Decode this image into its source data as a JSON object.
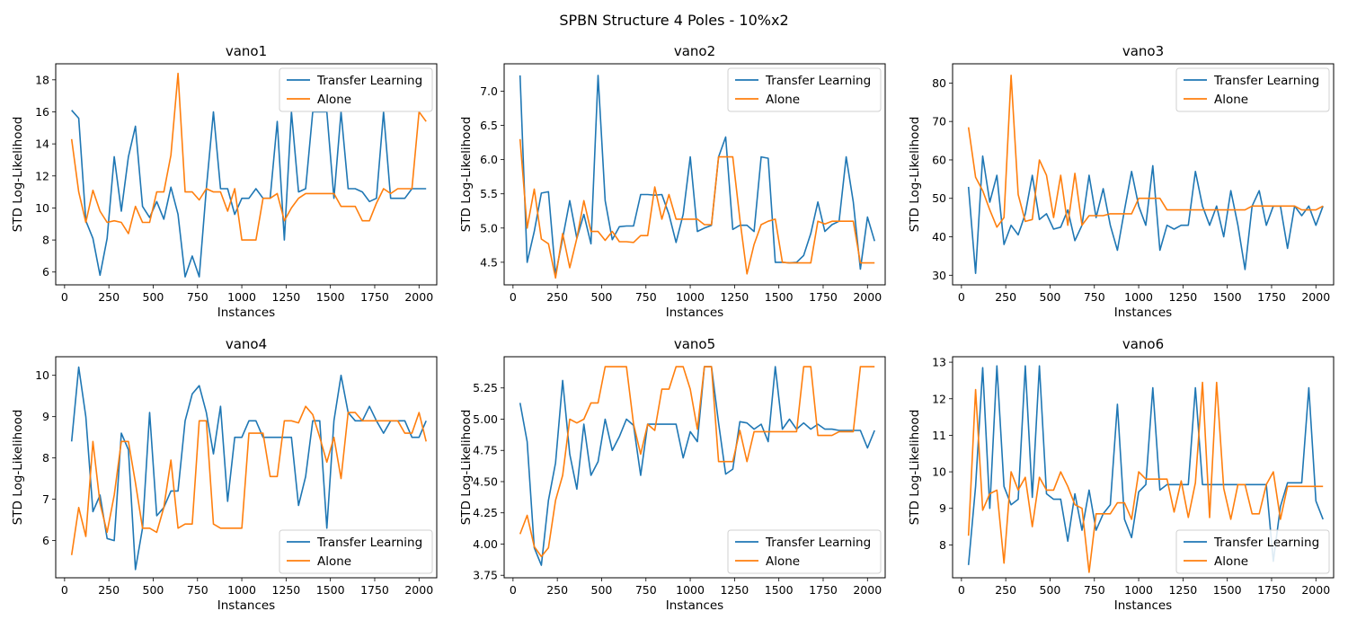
{
  "figure": {
    "suptitle": "SPBN Structure 4 Poles - 10%x2"
  },
  "chart_data": [
    {
      "type": "line",
      "title": "vano1",
      "xlabel": "Instances",
      "ylabel": "STD Log-Likelihood",
      "xlim": [
        -50,
        2100
      ],
      "ylim": [
        5.2,
        19.0
      ],
      "xticks": [
        0,
        250,
        500,
        750,
        1000,
        1250,
        1500,
        1750,
        2000
      ],
      "yticks": [
        6,
        8,
        10,
        12,
        14,
        16,
        18
      ],
      "tick_decimals": 0,
      "legend_position": "top-right",
      "x": [
        40,
        80,
        120,
        160,
        200,
        240,
        280,
        320,
        360,
        400,
        440,
        480,
        520,
        560,
        600,
        640,
        680,
        720,
        760,
        800,
        840,
        880,
        920,
        960,
        1000,
        1040,
        1080,
        1120,
        1160,
        1200,
        1240,
        1280,
        1320,
        1360,
        1400,
        1440,
        1480,
        1520,
        1560,
        1600,
        1640,
        1680,
        1720,
        1760,
        1800,
        1840,
        1880,
        1920,
        1960,
        2000,
        2040
      ],
      "series": [
        {
          "name": "Transfer Learning",
          "color": "#1f77b4",
          "values": [
            16.1,
            15.6,
            9.2,
            8.1,
            5.8,
            8.1,
            13.2,
            9.8,
            13.2,
            15.1,
            10.1,
            9.4,
            10.4,
            9.3,
            11.3,
            9.6,
            5.7,
            7.0,
            5.7,
            11.2,
            16.0,
            11.2,
            11.2,
            9.6,
            10.6,
            10.6,
            11.2,
            10.6,
            10.6,
            15.4,
            8.0,
            16.0,
            11.0,
            11.2,
            16.0,
            16.0,
            16.0,
            10.6,
            16.0,
            11.2,
            11.2,
            11.0,
            10.4,
            10.6,
            16.0,
            10.6,
            10.6,
            10.6,
            11.2,
            11.2,
            11.2
          ]
        },
        {
          "name": "Alone",
          "color": "#ff7f0e",
          "values": [
            14.3,
            11.0,
            9.1,
            11.1,
            9.8,
            9.1,
            9.2,
            9.1,
            8.4,
            10.1,
            9.1,
            9.1,
            11.0,
            11.0,
            13.3,
            18.4,
            11.0,
            11.0,
            10.5,
            11.2,
            11.0,
            11.0,
            9.8,
            11.2,
            8.0,
            8.0,
            8.0,
            10.6,
            10.6,
            10.9,
            9.2,
            10.0,
            10.6,
            10.9,
            10.9,
            10.9,
            10.9,
            10.9,
            10.1,
            10.1,
            10.1,
            9.2,
            9.2,
            10.3,
            11.2,
            10.9,
            11.2,
            11.2,
            11.2,
            16.0,
            15.4
          ]
        }
      ]
    },
    {
      "type": "line",
      "title": "vano2",
      "xlabel": "Instances",
      "ylabel": "STD Log-Likelihood",
      "xlim": [
        -50,
        2100
      ],
      "ylim": [
        4.17,
        7.4
      ],
      "xticks": [
        0,
        250,
        500,
        750,
        1000,
        1250,
        1500,
        1750,
        2000
      ],
      "yticks": [
        4.5,
        5.0,
        5.5,
        6.0,
        6.5,
        7.0
      ],
      "tick_decimals": 1,
      "legend_position": "top-right",
      "x": [
        40,
        80,
        120,
        160,
        200,
        240,
        280,
        320,
        360,
        400,
        440,
        480,
        520,
        560,
        600,
        640,
        680,
        720,
        760,
        800,
        840,
        880,
        920,
        960,
        1000,
        1040,
        1080,
        1120,
        1160,
        1200,
        1240,
        1280,
        1320,
        1360,
        1400,
        1440,
        1480,
        1520,
        1560,
        1600,
        1640,
        1680,
        1720,
        1760,
        1800,
        1840,
        1880,
        1920,
        1960,
        2000,
        2040
      ],
      "series": [
        {
          "name": "Transfer Learning",
          "color": "#1f77b4",
          "values": [
            7.23,
            4.5,
            4.95,
            5.51,
            5.53,
            4.32,
            4.85,
            5.4,
            4.85,
            5.2,
            4.77,
            7.23,
            5.4,
            4.83,
            5.02,
            5.03,
            5.03,
            5.49,
            5.49,
            5.48,
            5.49,
            5.2,
            4.79,
            5.2,
            6.04,
            4.95,
            5.0,
            5.04,
            6.04,
            6.33,
            4.98,
            5.04,
            5.04,
            4.95,
            6.04,
            6.02,
            4.5,
            4.5,
            4.49,
            4.5,
            4.6,
            4.92,
            5.38,
            4.95,
            5.05,
            5.1,
            6.04,
            5.38,
            4.4,
            5.16,
            4.81
          ]
        },
        {
          "name": "Alone",
          "color": "#ff7f0e",
          "values": [
            6.3,
            5.0,
            5.57,
            4.84,
            4.77,
            4.27,
            4.92,
            4.42,
            4.85,
            5.4,
            4.95,
            4.95,
            4.82,
            4.95,
            4.8,
            4.8,
            4.79,
            4.89,
            4.89,
            5.6,
            5.13,
            5.49,
            5.13,
            5.13,
            5.13,
            5.13,
            5.05,
            5.05,
            6.04,
            6.04,
            6.04,
            5.13,
            4.33,
            4.76,
            5.05,
            5.1,
            5.13,
            4.5,
            4.49,
            4.49,
            4.49,
            4.49,
            5.1,
            5.06,
            5.1,
            5.1,
            5.1,
            5.1,
            4.49,
            4.49,
            4.49
          ]
        }
      ]
    },
    {
      "type": "line",
      "title": "vano3",
      "xlabel": "Instances",
      "ylabel": "STD Log-Likelihood",
      "xlim": [
        -50,
        2100
      ],
      "ylim": [
        27.5,
        85.0
      ],
      "xticks": [
        0,
        250,
        500,
        750,
        1000,
        1250,
        1500,
        1750,
        2000
      ],
      "yticks": [
        30,
        40,
        50,
        60,
        70,
        80
      ],
      "tick_decimals": 0,
      "legend_position": "top-right",
      "x": [
        40,
        80,
        120,
        160,
        200,
        240,
        280,
        320,
        360,
        400,
        440,
        480,
        520,
        560,
        600,
        640,
        680,
        720,
        760,
        800,
        840,
        880,
        920,
        960,
        1000,
        1040,
        1080,
        1120,
        1160,
        1200,
        1240,
        1280,
        1320,
        1360,
        1400,
        1440,
        1480,
        1520,
        1560,
        1600,
        1640,
        1680,
        1720,
        1760,
        1800,
        1840,
        1880,
        1920,
        1960,
        2000,
        2040
      ],
      "series": [
        {
          "name": "Transfer Learning",
          "color": "#1f77b4",
          "values": [
            53.0,
            30.5,
            61.0,
            49.0,
            56.0,
            38.0,
            43.0,
            40.5,
            46.0,
            56.0,
            44.5,
            46.0,
            42.0,
            42.5,
            47.0,
            39.0,
            43.0,
            56.0,
            45.0,
            52.5,
            43.0,
            36.5,
            47.0,
            57.0,
            48.0,
            43.0,
            58.5,
            36.5,
            43.0,
            42.0,
            43.0,
            43.0,
            57.0,
            48.0,
            43.0,
            48.0,
            40.0,
            52.0,
            43.0,
            31.5,
            48.0,
            52.0,
            43.0,
            48.0,
            48.0,
            37.0,
            48.0,
            45.5,
            48.0,
            43.0,
            48.0
          ]
        },
        {
          "name": "Alone",
          "color": "#ff7f0e",
          "values": [
            68.5,
            55.5,
            52.0,
            47.0,
            42.5,
            45.0,
            82.0,
            51.0,
            44.0,
            44.5,
            60.0,
            56.0,
            45.0,
            56.0,
            43.0,
            56.5,
            43.0,
            45.5,
            45.5,
            45.5,
            46.0,
            46.0,
            46.0,
            46.0,
            50.0,
            50.0,
            50.0,
            50.0,
            47.0,
            47.0,
            47.0,
            47.0,
            47.0,
            47.0,
            47.0,
            47.0,
            47.0,
            47.0,
            47.0,
            47.0,
            48.0,
            48.0,
            48.0,
            48.0,
            48.0,
            48.0,
            48.0,
            47.0,
            47.0,
            47.0,
            48.0
          ]
        }
      ]
    },
    {
      "type": "line",
      "title": "vano4",
      "xlabel": "Instances",
      "ylabel": "STD Log-Likelihood",
      "xlim": [
        -50,
        2100
      ],
      "ylim": [
        5.1,
        10.45
      ],
      "xticks": [
        0,
        250,
        500,
        750,
        1000,
        1250,
        1500,
        1750,
        2000
      ],
      "yticks": [
        6,
        7,
        8,
        9,
        10
      ],
      "tick_decimals": 0,
      "legend_position": "bottom-right",
      "x": [
        40,
        80,
        120,
        160,
        200,
        240,
        280,
        320,
        360,
        400,
        440,
        480,
        520,
        560,
        600,
        640,
        680,
        720,
        760,
        800,
        840,
        880,
        920,
        960,
        1000,
        1040,
        1080,
        1120,
        1160,
        1200,
        1240,
        1280,
        1320,
        1360,
        1400,
        1440,
        1480,
        1520,
        1560,
        1600,
        1640,
        1680,
        1720,
        1760,
        1800,
        1840,
        1880,
        1920,
        1960,
        2000,
        2040
      ],
      "series": [
        {
          "name": "Transfer Learning",
          "color": "#1f77b4",
          "values": [
            8.4,
            10.2,
            9.0,
            6.7,
            7.1,
            6.05,
            6.0,
            8.6,
            8.2,
            5.3,
            6.3,
            9.1,
            6.6,
            6.8,
            7.2,
            7.2,
            8.9,
            9.55,
            9.75,
            9.1,
            8.1,
            9.25,
            6.95,
            8.5,
            8.5,
            8.9,
            8.9,
            8.5,
            8.5,
            8.5,
            8.5,
            8.5,
            6.85,
            7.55,
            8.9,
            8.9,
            6.3,
            8.9,
            10.0,
            9.1,
            8.9,
            8.9,
            9.25,
            8.9,
            8.6,
            8.9,
            8.9,
            8.9,
            8.5,
            8.5,
            8.9
          ]
        },
        {
          "name": "Alone",
          "color": "#ff7f0e",
          "values": [
            5.65,
            6.8,
            6.1,
            8.4,
            6.9,
            6.2,
            7.1,
            8.4,
            8.4,
            7.4,
            6.3,
            6.3,
            6.2,
            6.8,
            7.95,
            6.3,
            6.4,
            6.4,
            8.9,
            8.9,
            6.4,
            6.3,
            6.3,
            6.3,
            6.3,
            8.6,
            8.6,
            8.6,
            7.55,
            7.55,
            8.9,
            8.9,
            8.85,
            9.25,
            9.05,
            8.5,
            7.9,
            8.5,
            7.5,
            9.1,
            9.1,
            8.9,
            8.9,
            8.9,
            8.9,
            8.9,
            8.9,
            8.6,
            8.6,
            9.1,
            8.4
          ]
        }
      ]
    },
    {
      "type": "line",
      "title": "vano5",
      "xlabel": "Instances",
      "ylabel": "STD Log-Likelihood",
      "xlim": [
        -50,
        2100
      ],
      "ylim": [
        3.73,
        5.5
      ],
      "xticks": [
        0,
        250,
        500,
        750,
        1000,
        1250,
        1500,
        1750,
        2000
      ],
      "yticks": [
        3.75,
        4.0,
        4.25,
        4.5,
        4.75,
        5.0,
        5.25
      ],
      "tick_decimals": 2,
      "legend_position": "bottom-right",
      "x": [
        40,
        80,
        120,
        160,
        200,
        240,
        280,
        320,
        360,
        400,
        440,
        480,
        520,
        560,
        600,
        640,
        680,
        720,
        760,
        800,
        840,
        880,
        920,
        960,
        1000,
        1040,
        1080,
        1120,
        1160,
        1200,
        1240,
        1280,
        1320,
        1360,
        1400,
        1440,
        1480,
        1520,
        1560,
        1600,
        1640,
        1680,
        1720,
        1760,
        1800,
        1840,
        1880,
        1920,
        1960,
        2000,
        2040
      ],
      "series": [
        {
          "name": "Transfer Learning",
          "color": "#1f77b4",
          "values": [
            5.13,
            4.82,
            3.97,
            3.83,
            4.35,
            4.65,
            5.31,
            4.72,
            4.44,
            4.96,
            4.55,
            4.66,
            5.0,
            4.75,
            4.86,
            5.0,
            4.95,
            4.55,
            4.96,
            4.96,
            4.96,
            4.96,
            4.96,
            4.69,
            4.9,
            4.82,
            5.42,
            5.42,
            4.97,
            4.56,
            4.6,
            4.98,
            4.97,
            4.92,
            4.96,
            4.82,
            5.42,
            4.92,
            5.0,
            4.92,
            4.97,
            4.92,
            4.96,
            4.92,
            4.92,
            4.91,
            4.91,
            4.91,
            4.91,
            4.77,
            4.91
          ]
        },
        {
          "name": "Alone",
          "color": "#ff7f0e",
          "values": [
            4.08,
            4.23,
            3.98,
            3.9,
            3.97,
            4.35,
            4.55,
            5.0,
            4.97,
            5.0,
            5.13,
            5.13,
            5.42,
            5.42,
            5.42,
            5.42,
            4.96,
            4.72,
            4.96,
            4.91,
            5.24,
            5.24,
            5.42,
            5.42,
            5.24,
            4.92,
            5.42,
            5.42,
            4.66,
            4.66,
            4.66,
            4.91,
            4.66,
            4.9,
            4.9,
            4.9,
            4.9,
            4.9,
            4.9,
            4.9,
            5.42,
            5.42,
            4.87,
            4.87,
            4.87,
            4.9,
            4.9,
            4.9,
            5.42,
            5.42,
            5.42
          ]
        }
      ]
    },
    {
      "type": "line",
      "title": "vano6",
      "xlabel": "Instances",
      "ylabel": "STD Log-Likelihood",
      "xlim": [
        -50,
        2100
      ],
      "ylim": [
        7.1,
        13.15
      ],
      "xticks": [
        0,
        250,
        500,
        750,
        1000,
        1250,
        1500,
        1750,
        2000
      ],
      "yticks": [
        8,
        9,
        10,
        11,
        12,
        13
      ],
      "tick_decimals": 0,
      "legend_position": "bottom-right",
      "x": [
        40,
        80,
        120,
        160,
        200,
        240,
        280,
        320,
        360,
        400,
        440,
        480,
        520,
        560,
        600,
        640,
        680,
        720,
        760,
        800,
        840,
        880,
        920,
        960,
        1000,
        1040,
        1080,
        1120,
        1160,
        1200,
        1240,
        1280,
        1320,
        1360,
        1400,
        1440,
        1480,
        1520,
        1560,
        1600,
        1640,
        1680,
        1720,
        1760,
        1800,
        1840,
        1880,
        1920,
        1960,
        2000,
        2040
      ],
      "series": [
        {
          "name": "Transfer Learning",
          "color": "#1f77b4",
          "values": [
            7.45,
            9.6,
            12.85,
            9.0,
            12.9,
            9.6,
            9.1,
            9.25,
            12.9,
            9.3,
            12.9,
            9.4,
            9.25,
            9.25,
            8.1,
            9.4,
            8.4,
            9.5,
            8.4,
            8.85,
            9.1,
            11.85,
            8.7,
            8.2,
            9.45,
            9.65,
            12.3,
            9.5,
            9.65,
            9.65,
            9.65,
            9.65,
            12.3,
            9.65,
            9.65,
            9.65,
            9.65,
            9.65,
            9.65,
            9.65,
            9.65,
            9.65,
            9.65,
            7.55,
            9.05,
            9.7,
            9.7,
            9.7,
            12.3,
            9.2,
            8.7
          ]
        },
        {
          "name": "Alone",
          "color": "#ff7f0e",
          "values": [
            8.25,
            12.25,
            8.95,
            9.4,
            9.5,
            7.5,
            10.0,
            9.5,
            9.85,
            8.5,
            9.85,
            9.5,
            9.5,
            10.0,
            9.6,
            9.1,
            9.0,
            7.25,
            8.85,
            8.85,
            8.85,
            9.15,
            9.15,
            8.7,
            10.0,
            9.8,
            9.8,
            9.8,
            9.8,
            8.9,
            9.75,
            8.75,
            9.7,
            12.45,
            8.75,
            12.45,
            9.55,
            8.7,
            9.65,
            9.65,
            8.85,
            8.85,
            9.65,
            10.0,
            8.7,
            9.6,
            9.6,
            9.6,
            9.6,
            9.6,
            9.6
          ]
        }
      ]
    }
  ]
}
